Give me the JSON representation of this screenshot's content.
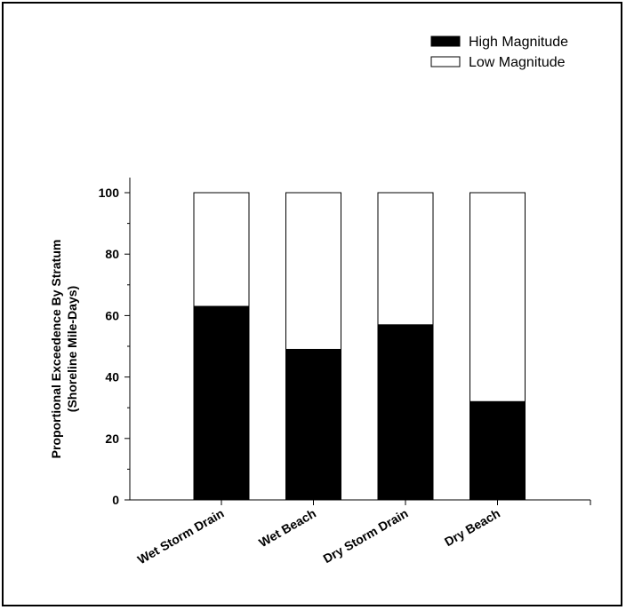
{
  "chart_data": {
    "type": "bar",
    "stacked": true,
    "categories": [
      "Wet Storm Drain",
      "Wet Beach",
      "Dry Storm Drain",
      "Dry Beach"
    ],
    "series": [
      {
        "name": "High Magnitude",
        "values": [
          63,
          49,
          57,
          32
        ],
        "color": "#000000"
      },
      {
        "name": "Low Magnitude",
        "values": [
          37,
          51,
          43,
          68
        ],
        "color": "#ffffff"
      }
    ],
    "title": "",
    "xlabel": "",
    "ylabel": "Proportional Exceedence By Stratum",
    "ylabel2": "(Shoreline Mile-Days)",
    "ylim": [
      0,
      100
    ],
    "yticks": [
      0,
      20,
      40,
      60,
      80,
      100
    ],
    "grid": false,
    "legend_position": "top-right"
  }
}
